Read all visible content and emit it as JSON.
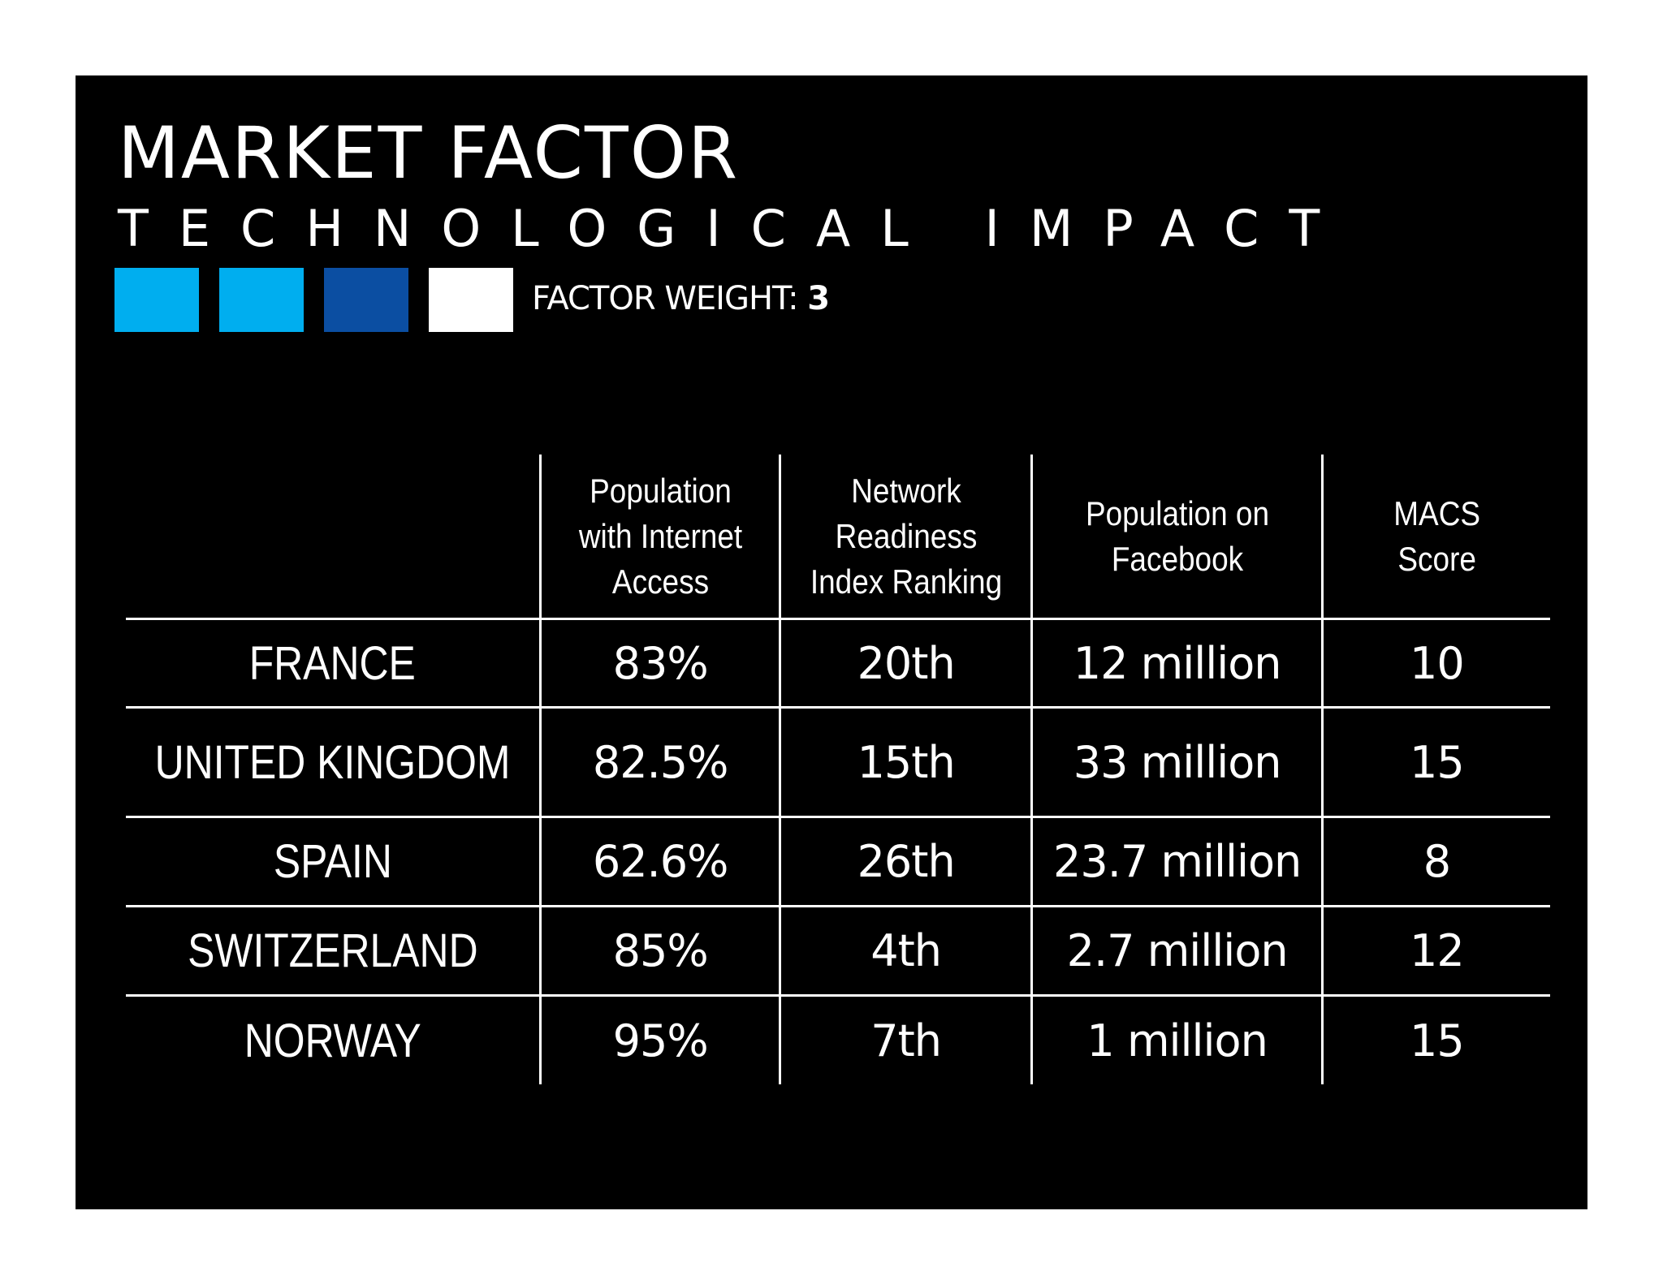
{
  "header": {
    "title": "MARKET FACTOR",
    "subtitle": "TECHNOLOGICAL IMPACT"
  },
  "factor_weight": {
    "label": "FACTOR WEIGHT:",
    "value": "3",
    "squares": [
      {
        "color": "#00aeef"
      },
      {
        "color": "#00aeef"
      },
      {
        "color": "#0b4ea2"
      },
      {
        "color": "#ffffff"
      }
    ]
  },
  "table": {
    "headers": [
      [],
      [
        "Population",
        "with Internet",
        "Access"
      ],
      [
        "Network",
        "Readiness",
        "Index Ranking"
      ],
      [
        "Population on",
        "Facebook"
      ],
      [
        "MACS",
        "Score"
      ]
    ],
    "rows": [
      {
        "country": "FRANCE",
        "internet": "83%",
        "ranking": "20th",
        "facebook": "12 million",
        "score": "10"
      },
      {
        "country": "UNITED KINGDOM",
        "internet": "82.5%",
        "ranking": "15th",
        "facebook": "33 million",
        "score": "15"
      },
      {
        "country": "SPAIN",
        "internet": "62.6%",
        "ranking": "26th",
        "facebook": "23.7 million",
        "score": "8"
      },
      {
        "country": "SWITZERLAND",
        "internet": "85%",
        "ranking": "4th",
        "facebook": "2.7 million",
        "score": "12"
      },
      {
        "country": "NORWAY",
        "internet": "95%",
        "ranking": "7th",
        "facebook": "1 million",
        "score": "15"
      }
    ]
  }
}
